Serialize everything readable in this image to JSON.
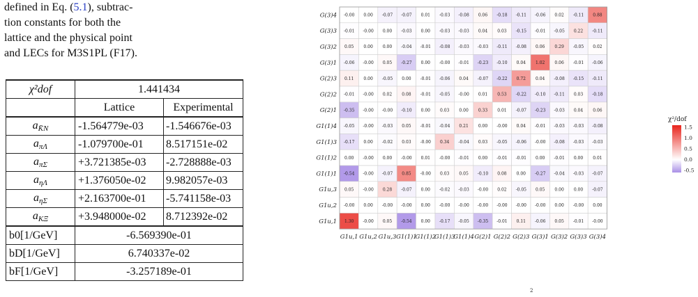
{
  "caption": {
    "line1": "defined in Eq. (5.1), subtrac-",
    "line1_pre": "defined in Eq. (",
    "line1_ref": "5.1",
    "line1_post": "), subtrac-",
    "line2": "tion constants for both the",
    "line3": "lattice and the physical point",
    "line4": "and LECs for M3S1PL (F17)."
  },
  "table": {
    "chi2_label": "χ²dof",
    "chi2_value": "1.441434",
    "col_lattice": "Lattice",
    "col_experimental": "Experimental",
    "rows": [
      {
        "sym": "a",
        "sub": "K̄N",
        "lattice": "-1.564779e-03",
        "exp": "-1.546676e-03"
      },
      {
        "sym": "a",
        "sub": "πΛ",
        "lattice": "-1.079700e-01",
        "exp": "8.517151e-02"
      },
      {
        "sym": "a",
        "sub": "πΣ",
        "lattice": "+3.721385e-03",
        "exp": "-2.728888e-03"
      },
      {
        "sym": "a",
        "sub": "ηΛ",
        "lattice": "+1.376050e-02",
        "exp": "9.982057e-03"
      },
      {
        "sym": "a",
        "sub": "ηΣ",
        "lattice": "+2.163700e-01",
        "exp": "-5.741158e-03"
      },
      {
        "sym": "a",
        "sub": "KΞ",
        "lattice": "+3.948000e-02",
        "exp": "8.712392e-02"
      }
    ],
    "lecs": [
      {
        "label": "b0[1/GeV]",
        "value": "-6.569390e-01"
      },
      {
        "label": "bD[1/GeV]",
        "value": "6.740337e-02"
      },
      {
        "label": "bF[1/GeV]",
        "value": "-3.257189e-01"
      }
    ]
  },
  "chart_data": {
    "type": "heatmap",
    "colorbar_title": "χ²/dof",
    "colorbar_ticks": [
      "1.5",
      "1.0",
      "0.5",
      "0.0",
      "-0.5"
    ],
    "colorbar_tick_values": [
      1.5,
      1.0,
      0.5,
      0.0,
      -0.5
    ],
    "vrange": [
      -0.6,
      1.6
    ],
    "colors": {
      "negative": "#a98fe6",
      "zero": "#ffffff",
      "positive": "#e8241c"
    },
    "x_labels": [
      "G1u,1",
      "G1u,2",
      "G1u,3",
      "G1(1)1",
      "G1(1)2",
      "G1(1)3",
      "G1(1)4",
      "G(2)1",
      "G(2)2",
      "G(2)3",
      "G(3)1",
      "G(3)2",
      "G(3)3",
      "G(3)4"
    ],
    "y_labels_top_to_bottom": [
      "G(3)4",
      "G(3)3",
      "G(3)2",
      "G(3)1",
      "G(2)3",
      "G(2)2",
      "G(2)1",
      "G1(1)4",
      "G1(1)3",
      "G1(1)2",
      "G1(1)1",
      "G1u,3",
      "G1u,2",
      "G1u,1"
    ],
    "values": [
      [
        "-0.00",
        "0.00",
        "-0.07",
        "-0.07",
        "0.01",
        "-0.03",
        "-0.08",
        "0.06",
        "-0.18",
        "-0.11",
        "-0.06",
        "0.02",
        "-0.11",
        "0.88"
      ],
      [
        "-0.01",
        "-0.00",
        "0.00",
        "-0.03",
        "0.00",
        "-0.03",
        "-0.03",
        "0.04",
        "0.03",
        "-0.15",
        "-0.01",
        "-0.05",
        "0.22",
        "-0.11"
      ],
      [
        "0.05",
        "0.00",
        "0.00",
        "-0.04",
        "-0.01",
        "-0.08",
        "-0.03",
        "-0.03",
        "-0.11",
        "-0.08",
        "0.06",
        "0.29",
        "-0.05",
        "0.02"
      ],
      [
        "-0.06",
        "-0.00",
        "0.05",
        "-0.27",
        "0.00",
        "-0.00",
        "-0.01",
        "-0.23",
        "-0.10",
        "0.04",
        "1.02",
        "0.06",
        "-0.01",
        "-0.06"
      ],
      [
        "0.11",
        "0.00",
        "-0.05",
        "0.00",
        "-0.01",
        "-0.06",
        "0.04",
        "-0.07",
        "-0.22",
        "0.72",
        "0.04",
        "-0.08",
        "-0.15",
        "-0.11"
      ],
      [
        "-0.01",
        "-0.00",
        "0.02",
        "0.08",
        "-0.01",
        "-0.05",
        "-0.00",
        "0.01",
        "0.53",
        "-0.22",
        "-0.10",
        "-0.11",
        "0.03",
        "-0.18"
      ],
      [
        "-0.35",
        "-0.00",
        "-0.00",
        "-0.10",
        "0.00",
        "0.03",
        "0.00",
        "0.33",
        "0.01",
        "-0.07",
        "-0.23",
        "-0.03",
        "0.04",
        "0.06"
      ],
      [
        "-0.05",
        "-0.00",
        "-0.03",
        "0.05",
        "-0.01",
        "-0.04",
        "0.21",
        "0.00",
        "-0.00",
        "0.04",
        "-0.01",
        "-0.03",
        "-0.03",
        "-0.08"
      ],
      [
        "-0.17",
        "0.00",
        "-0.02",
        "0.03",
        "-0.00",
        "0.34",
        "-0.04",
        "0.03",
        "-0.05",
        "-0.06",
        "-0.00",
        "-0.08",
        "-0.03",
        "-0.03"
      ],
      [
        "0.00",
        "-0.00",
        "0.00",
        "-0.00",
        "0.01",
        "-0.00",
        "-0.01",
        "0.00",
        "-0.01",
        "-0.01",
        "0.00",
        "-0.01",
        "0.00",
        "0.01"
      ],
      [
        "-0.54",
        "-0.00",
        "-0.07",
        "0.85",
        "-0.00",
        "0.03",
        "0.05",
        "-0.10",
        "0.08",
        "0.00",
        "-0.27",
        "-0.04",
        "-0.03",
        "-0.07"
      ],
      [
        "0.05",
        "-0.00",
        "0.28",
        "-0.07",
        "0.00",
        "-0.02",
        "-0.03",
        "-0.00",
        "0.02",
        "-0.05",
        "0.05",
        "0.00",
        "0.00",
        "-0.07"
      ],
      [
        "-0.00",
        "0.00",
        "-0.00",
        "-0.00",
        "0.00",
        "-0.00",
        "-0.00",
        "-0.00",
        "-0.00",
        "-0.00",
        "-0.00",
        "0.00",
        "-0.00",
        "0.00"
      ],
      [
        "1.30",
        "-0.00",
        "0.05",
        "-0.54",
        "0.00",
        "-0.17",
        "-0.05",
        "-0.35",
        "-0.01",
        "0.11",
        "-0.06",
        "0.05",
        "-0.01",
        "-0.00"
      ]
    ],
    "bottom_caption_fragment": "2"
  }
}
